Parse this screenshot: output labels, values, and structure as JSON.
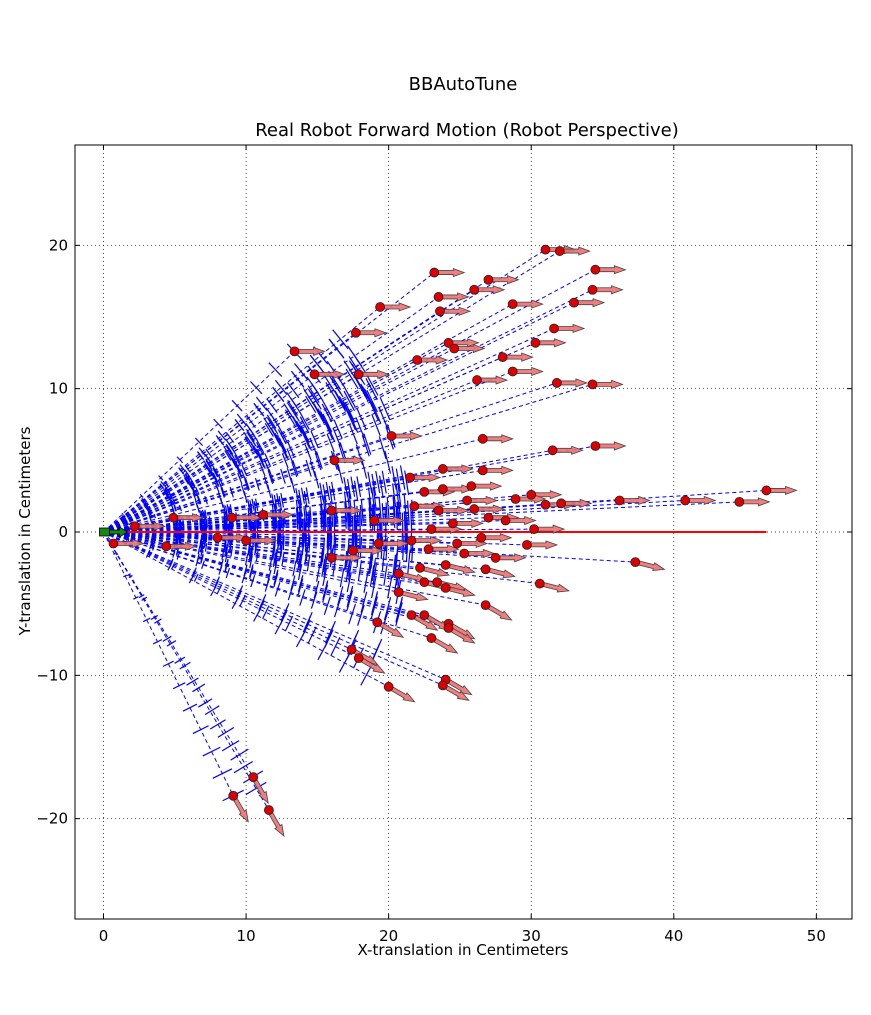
{
  "figure_title": "BBAutoTune",
  "chart_data": {
    "type": "scatter",
    "title": "Real Robot Forward Motion (Robot Perspective)",
    "xlabel": "X-translation in Centimeters",
    "ylabel": "Y-translation in Centimeters",
    "xlim": [
      -2,
      52.5
    ],
    "ylim": [
      -27,
      27
    ],
    "xticks": [
      0,
      10,
      20,
      30,
      40,
      50
    ],
    "yticks": [
      -20,
      -10,
      0,
      10,
      20
    ],
    "xtick_labels": [
      "0",
      "10",
      "20",
      "30",
      "40",
      "50"
    ],
    "ytick_labels": [
      "−20",
      "−10",
      "0",
      "10",
      "20"
    ],
    "grid": true,
    "legend": "none",
    "colors": {
      "path_lines": "#0000ff",
      "arc_sweep": "#0000ff",
      "endpoints": "#dd0000",
      "heading_arrows": "#f07070",
      "reference_line": "#ff0000",
      "start_marker": "#118811"
    },
    "start": {
      "x": 0,
      "y": 0,
      "heading_deg": 0
    },
    "reference_line": {
      "x": [
        0,
        46.5
      ],
      "y": [
        0,
        0
      ]
    },
    "endpoints": [
      {
        "x": 31.0,
        "y": 19.7
      },
      {
        "x": 32.0,
        "y": 19.6
      },
      {
        "x": 23.2,
        "y": 18.1
      },
      {
        "x": 34.5,
        "y": 18.3
      },
      {
        "x": 27.0,
        "y": 17.6
      },
      {
        "x": 26.0,
        "y": 16.9
      },
      {
        "x": 34.3,
        "y": 16.9
      },
      {
        "x": 23.5,
        "y": 16.4
      },
      {
        "x": 19.4,
        "y": 15.7
      },
      {
        "x": 28.7,
        "y": 15.9
      },
      {
        "x": 33.0,
        "y": 16.0
      },
      {
        "x": 23.6,
        "y": 15.4
      },
      {
        "x": 17.7,
        "y": 13.9
      },
      {
        "x": 31.6,
        "y": 14.2
      },
      {
        "x": 13.4,
        "y": 12.6
      },
      {
        "x": 24.2,
        "y": 13.2
      },
      {
        "x": 24.6,
        "y": 12.8
      },
      {
        "x": 30.3,
        "y": 13.2
      },
      {
        "x": 28.0,
        "y": 12.2
      },
      {
        "x": 22.0,
        "y": 12.0
      },
      {
        "x": 14.8,
        "y": 11.0
      },
      {
        "x": 17.9,
        "y": 11.0
      },
      {
        "x": 28.7,
        "y": 11.2
      },
      {
        "x": 26.2,
        "y": 10.6
      },
      {
        "x": 31.8,
        "y": 10.4
      },
      {
        "x": 34.3,
        "y": 10.3
      },
      {
        "x": 20.2,
        "y": 6.7
      },
      {
        "x": 26.6,
        "y": 6.5
      },
      {
        "x": 31.5,
        "y": 5.7
      },
      {
        "x": 34.5,
        "y": 6.0
      },
      {
        "x": 16.2,
        "y": 5.0
      },
      {
        "x": 21.5,
        "y": 3.8
      },
      {
        "x": 23.8,
        "y": 4.4
      },
      {
        "x": 26.6,
        "y": 4.3
      },
      {
        "x": 46.5,
        "y": 2.9
      },
      {
        "x": 30.0,
        "y": 2.6
      },
      {
        "x": 36.2,
        "y": 2.2
      },
      {
        "x": 40.8,
        "y": 2.2
      },
      {
        "x": 44.6,
        "y": 2.1
      },
      {
        "x": 31.0,
        "y": 1.9
      },
      {
        "x": 28.9,
        "y": 2.3
      },
      {
        "x": 32.1,
        "y": 2.0
      },
      {
        "x": 2.2,
        "y": 0.4
      },
      {
        "x": 4.9,
        "y": 1.0
      },
      {
        "x": 9.0,
        "y": 1.0
      },
      {
        "x": 11.2,
        "y": 1.2
      },
      {
        "x": 16.0,
        "y": 1.5
      },
      {
        "x": 19.0,
        "y": 0.8
      },
      {
        "x": 0.7,
        "y": -0.8
      },
      {
        "x": 4.4,
        "y": -1.0
      },
      {
        "x": 8.0,
        "y": -0.4
      },
      {
        "x": 10.0,
        "y": -0.6
      },
      {
        "x": 16.0,
        "y": -1.8
      },
      {
        "x": 17.5,
        "y": -1.3
      },
      {
        "x": 19.3,
        "y": -0.8
      },
      {
        "x": 29.7,
        "y": -0.9
      },
      {
        "x": 37.3,
        "y": -2.1
      },
      {
        "x": 30.2,
        "y": 0.2
      },
      {
        "x": 20.7,
        "y": -2.9
      },
      {
        "x": 22.5,
        "y": -3.5
      },
      {
        "x": 23.4,
        "y": -3.5
      },
      {
        "x": 24.0,
        "y": -3.9
      },
      {
        "x": 30.6,
        "y": -3.6
      },
      {
        "x": 20.7,
        "y": -4.2
      },
      {
        "x": 26.8,
        "y": -5.1
      },
      {
        "x": 21.6,
        "y": -5.8
      },
      {
        "x": 22.5,
        "y": -5.8
      },
      {
        "x": 19.2,
        "y": -6.3
      },
      {
        "x": 24.2,
        "y": -6.4
      },
      {
        "x": 24.2,
        "y": -6.7
      },
      {
        "x": 23.0,
        "y": -7.4
      },
      {
        "x": 17.4,
        "y": -8.2
      },
      {
        "x": 17.9,
        "y": -8.8
      },
      {
        "x": 24.0,
        "y": -10.3
      },
      {
        "x": 20.0,
        "y": -10.8
      },
      {
        "x": 23.8,
        "y": -10.7
      },
      {
        "x": 10.5,
        "y": -17.1
      },
      {
        "x": 9.1,
        "y": -18.4
      },
      {
        "x": 11.6,
        "y": -19.4
      },
      {
        "x": 22.5,
        "y": 2.8
      },
      {
        "x": 23.5,
        "y": 1.5
      },
      {
        "x": 24.5,
        "y": 0.6
      },
      {
        "x": 25.5,
        "y": 2.2
      },
      {
        "x": 26.5,
        "y": -0.4
      },
      {
        "x": 22.8,
        "y": -1.2
      },
      {
        "x": 24.0,
        "y": -2.3
      },
      {
        "x": 25.3,
        "y": -1.5
      },
      {
        "x": 27.0,
        "y": 1.0
      },
      {
        "x": 23.0,
        "y": 0.2
      },
      {
        "x": 21.8,
        "y": 1.8
      },
      {
        "x": 25.8,
        "y": 3.2
      },
      {
        "x": 27.5,
        "y": -1.8
      },
      {
        "x": 22.2,
        "y": -2.5
      },
      {
        "x": 26.0,
        "y": 1.6
      },
      {
        "x": 24.8,
        "y": -0.8
      },
      {
        "x": 28.2,
        "y": 0.8
      },
      {
        "x": 21.6,
        "y": -0.6
      },
      {
        "x": 23.8,
        "y": 3.0
      },
      {
        "x": 26.8,
        "y": -2.6
      }
    ]
  }
}
